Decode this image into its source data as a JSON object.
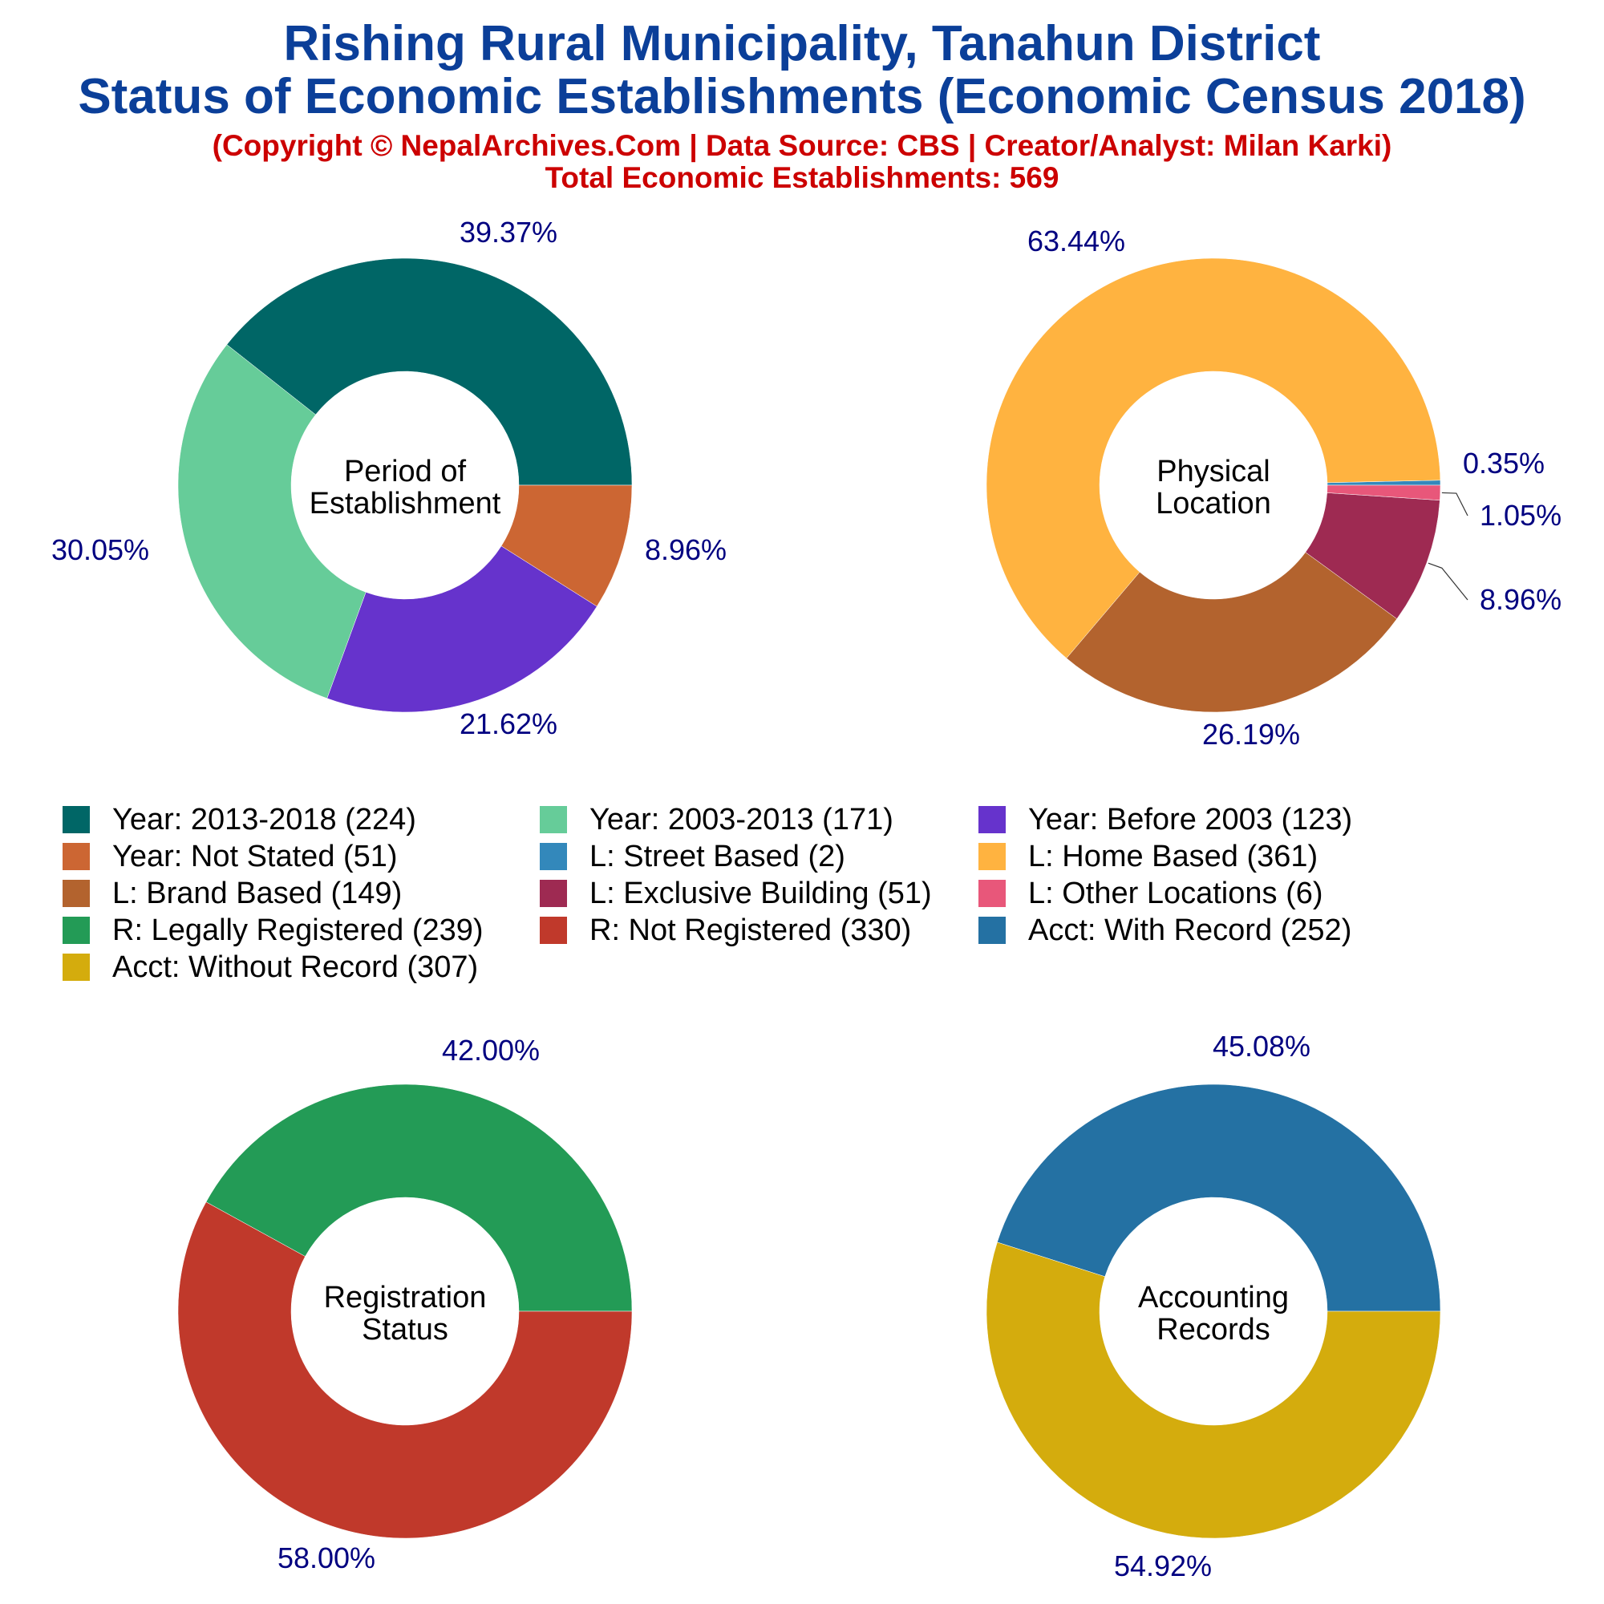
{
  "header": {
    "title_line1": "Rishing Rural Municipality, Tanahun District",
    "title_line2": "Status of Economic Establishments (Economic Census 2018)",
    "copyright": "(Copyright © NepalArchives.Com | Data Source: CBS | Creator/Analyst: Milan Karki)",
    "total": "Total Economic Establishments: 569"
  },
  "colors": {
    "title": "#0b3f99",
    "subtitle": "#cc0000",
    "pct_label": "#000080"
  },
  "legend": [
    {
      "label": "Year: 2013-2018 (224)",
      "color": "#006666"
    },
    {
      "label": "Year: 2003-2013 (171)",
      "color": "#66cc99"
    },
    {
      "label": "Year: Before 2003 (123)",
      "color": "#6633cc"
    },
    {
      "label": "Year: Not Stated (51)",
      "color": "#cc6633"
    },
    {
      "label": "L: Street Based (2)",
      "color": "#3388bb"
    },
    {
      "label": "L: Home Based (361)",
      "color": "#ffb340"
    },
    {
      "label": "L: Brand Based (149)",
      "color": "#b3632e"
    },
    {
      "label": "L: Exclusive Building (51)",
      "color": "#9e2a52"
    },
    {
      "label": "L: Other Locations (6)",
      "color": "#e8577a"
    },
    {
      "label": "R: Legally Registered (239)",
      "color": "#239b56"
    },
    {
      "label": "R: Not Registered (330)",
      "color": "#c0392b"
    },
    {
      "label": "Acct: With Record (252)",
      "color": "#2471a3"
    },
    {
      "label": "Acct: Without Record (307)",
      "color": "#d4ac0d"
    }
  ],
  "chart_data": [
    {
      "type": "pie",
      "donut": true,
      "center_label": [
        "Period of",
        "Establishment"
      ],
      "start_angle_deg": 0,
      "direction": "counterclockwise",
      "slices": [
        {
          "name": "Year: 2013-2018",
          "value": 224,
          "percent": 39.37,
          "label": "39.37%",
          "color": "#006666"
        },
        {
          "name": "Year: 2003-2013",
          "value": 171,
          "percent": 30.05,
          "label": "30.05%",
          "color": "#66cc99"
        },
        {
          "name": "Year: Before 2003",
          "value": 123,
          "percent": 21.62,
          "label": "21.62%",
          "color": "#6633cc"
        },
        {
          "name": "Year: Not Stated",
          "value": 51,
          "percent": 8.96,
          "label": "8.96%",
          "color": "#cc6633"
        }
      ]
    },
    {
      "type": "pie",
      "donut": true,
      "center_label": [
        "Physical",
        "Location"
      ],
      "start_angle_deg": 0,
      "direction": "counterclockwise",
      "slices": [
        {
          "name": "L: Street Based",
          "value": 2,
          "percent": 0.35,
          "label": "0.35%",
          "color": "#3388bb"
        },
        {
          "name": "L: Home Based",
          "value": 361,
          "percent": 63.44,
          "label": "63.44%",
          "color": "#ffb340"
        },
        {
          "name": "L: Brand Based",
          "value": 149,
          "percent": 26.19,
          "label": "26.19%",
          "color": "#b3632e"
        },
        {
          "name": "L: Exclusive Building",
          "value": 51,
          "percent": 8.96,
          "label": "8.96%",
          "color": "#9e2a52"
        },
        {
          "name": "L: Other Locations",
          "value": 6,
          "percent": 1.05,
          "label": "1.05%",
          "color": "#e8577a"
        }
      ]
    },
    {
      "type": "pie",
      "donut": true,
      "center_label": [
        "Registration",
        "Status"
      ],
      "start_angle_deg": 0,
      "direction": "counterclockwise",
      "slices": [
        {
          "name": "R: Legally Registered",
          "value": 239,
          "percent": 42.0,
          "label": "42.00%",
          "color": "#239b56"
        },
        {
          "name": "R: Not Registered",
          "value": 330,
          "percent": 58.0,
          "label": "58.00%",
          "color": "#c0392b"
        }
      ]
    },
    {
      "type": "pie",
      "donut": true,
      "center_label": [
        "Accounting",
        "Records"
      ],
      "start_angle_deg": 0,
      "direction": "counterclockwise",
      "slices": [
        {
          "name": "Acct: With Record",
          "value": 252,
          "percent": 45.08,
          "label": "45.08%",
          "color": "#2471a3"
        },
        {
          "name": "Acct: Without Record",
          "value": 307,
          "percent": 54.92,
          "label": "54.92%",
          "color": "#d4ac0d"
        }
      ]
    }
  ]
}
